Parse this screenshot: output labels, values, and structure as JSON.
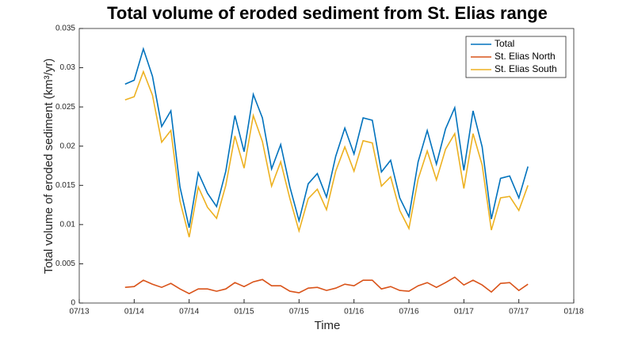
{
  "chart_data": {
    "type": "line",
    "title": "Total volume of eroded sediment from St. Elias range",
    "x_label": "Time",
    "y_label": "Total volume of eroded sediment (km³/yr)",
    "x": [
      "12/13",
      "01/14",
      "02/14",
      "03/14",
      "04/14",
      "05/14",
      "06/14",
      "07/14",
      "08/14",
      "09/14",
      "10/14",
      "11/14",
      "12/14",
      "01/15",
      "02/15",
      "03/15",
      "04/15",
      "05/15",
      "06/15",
      "07/15",
      "08/15",
      "09/15",
      "10/15",
      "11/15",
      "12/15",
      "01/16",
      "02/16",
      "03/16",
      "04/16",
      "05/16",
      "06/16",
      "07/16",
      "08/16",
      "09/16",
      "10/16",
      "11/16",
      "12/16",
      "01/17",
      "02/17",
      "03/17",
      "04/17",
      "05/17",
      "06/17",
      "07/17",
      "08/17"
    ],
    "series": [
      {
        "name": "Total",
        "color": "#0072bd",
        "values": [
          0.0279,
          0.0284,
          0.0324,
          0.0289,
          0.0225,
          0.0245,
          0.0148,
          0.0096,
          0.0166,
          0.014,
          0.0123,
          0.0168,
          0.0239,
          0.0193,
          0.0266,
          0.0236,
          0.0171,
          0.0202,
          0.0148,
          0.0105,
          0.0152,
          0.0165,
          0.0135,
          0.0187,
          0.0223,
          0.019,
          0.0236,
          0.0233,
          0.0167,
          0.0182,
          0.0134,
          0.011,
          0.018,
          0.022,
          0.0177,
          0.0222,
          0.0249,
          0.0169,
          0.0245,
          0.0199,
          0.0107,
          0.0159,
          0.0162,
          0.0134,
          0.0174
        ]
      },
      {
        "name": "St. Elias North",
        "color": "#d95319",
        "values": [
          0.002,
          0.0021,
          0.0029,
          0.0024,
          0.002,
          0.0025,
          0.0018,
          0.0012,
          0.0018,
          0.0018,
          0.0015,
          0.0018,
          0.0026,
          0.0021,
          0.0027,
          0.003,
          0.0022,
          0.0022,
          0.0015,
          0.0013,
          0.0019,
          0.002,
          0.0016,
          0.0019,
          0.0024,
          0.0022,
          0.0029,
          0.0029,
          0.0018,
          0.0021,
          0.0016,
          0.0015,
          0.0022,
          0.0026,
          0.002,
          0.0026,
          0.0033,
          0.0023,
          0.0029,
          0.0023,
          0.0014,
          0.0025,
          0.0026,
          0.0016,
          0.0024
        ]
      },
      {
        "name": "St. Elias South",
        "color": "#edb120",
        "values": [
          0.0259,
          0.0263,
          0.0295,
          0.0265,
          0.0205,
          0.022,
          0.013,
          0.0084,
          0.0148,
          0.0122,
          0.0108,
          0.015,
          0.0213,
          0.0172,
          0.0239,
          0.0206,
          0.0149,
          0.018,
          0.0133,
          0.0092,
          0.0133,
          0.0145,
          0.0119,
          0.0168,
          0.0199,
          0.0168,
          0.0207,
          0.0204,
          0.0149,
          0.0161,
          0.0118,
          0.0095,
          0.0158,
          0.0194,
          0.0157,
          0.0196,
          0.0216,
          0.0146,
          0.0216,
          0.0176,
          0.0093,
          0.0134,
          0.0136,
          0.0118,
          0.015
        ]
      }
    ],
    "xlim": [
      "07/13",
      "01/18"
    ],
    "xticks": [
      "07/13",
      "01/14",
      "07/14",
      "01/15",
      "07/15",
      "01/16",
      "07/16",
      "01/17",
      "07/17",
      "01/18"
    ],
    "ylim": [
      0,
      0.035
    ],
    "yticks": [
      0,
      0.005,
      0.01,
      0.015,
      0.02,
      0.025,
      0.03,
      0.035
    ],
    "legend": "northeast"
  }
}
